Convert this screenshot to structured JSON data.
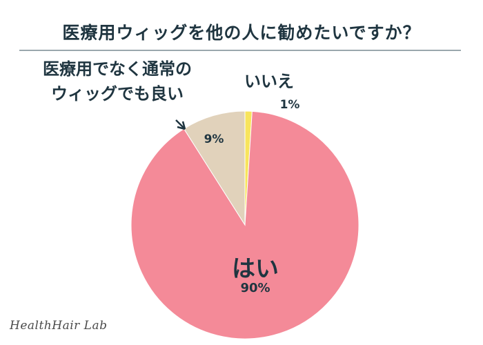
{
  "title": "医療用ウィッグを他の人に勧めたいですか？",
  "watermark": "HealthHair Lab",
  "chart_data": {
    "type": "pie",
    "title": "医療用ウィッグを他の人に勧めたいですか？",
    "slices": [
      {
        "label": "はい",
        "value": 90,
        "value_label": "90%",
        "color": "#f48a98"
      },
      {
        "label": "医療用でなく通常のウィッグでも良い",
        "value": 9,
        "value_label": "9%",
        "color": "#e1d2bb"
      },
      {
        "label": "いいえ",
        "value": 1,
        "value_label": "1%",
        "color": "#f8e45c"
      }
    ],
    "start": "12 o'clock",
    "direction": "clockwise"
  },
  "labels": {
    "yes_name": "はい",
    "yes_value": "90%",
    "other_name_line1": "医療用でなく通常の",
    "other_name_line2": "ウィッグでも良い",
    "other_value": "9%",
    "no_name": "いいえ",
    "no_value": "1%"
  }
}
